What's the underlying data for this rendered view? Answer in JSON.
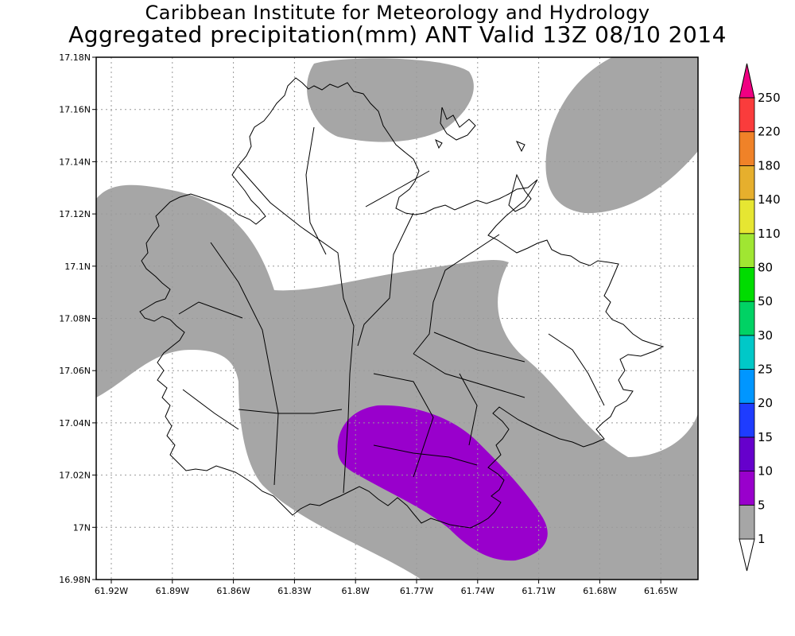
{
  "header": {
    "title_line1": "Caribbean Institute for Meteorology and Hydrology",
    "title_line2": "Aggregated precipitation(mm) ANT Valid 13Z 08/10 2014"
  },
  "map": {
    "lat_labels": [
      "17.18N",
      "17.16N",
      "17.14N",
      "17.12N",
      "17.1N",
      "17.08N",
      "17.06N",
      "17.04N",
      "17.02N",
      "17N",
      "16.98N"
    ],
    "lon_labels": [
      "61.92W",
      "61.89W",
      "61.86W",
      "61.83W",
      "61.8W",
      "61.77W",
      "61.74W",
      "61.71W",
      "61.68W",
      "61.65W"
    ],
    "field_colors": {
      "light_rain": "#a6a6a6",
      "moderate_rain": "#9900cc"
    }
  },
  "colorbar": {
    "levels": [
      {
        "label": "1",
        "color": "#ffffff"
      },
      {
        "label": "5",
        "color": "#a6a6a6"
      },
      {
        "label": "10",
        "color": "#9900cc"
      },
      {
        "label": "15",
        "color": "#6600cc"
      },
      {
        "label": "20",
        "color": "#1e3cff"
      },
      {
        "label": "25",
        "color": "#0096ff"
      },
      {
        "label": "30",
        "color": "#00c8c8"
      },
      {
        "label": "50",
        "color": "#00d264"
      },
      {
        "label": "80",
        "color": "#00dc00"
      },
      {
        "label": "110",
        "color": "#a0e632"
      },
      {
        "label": "140",
        "color": "#e6e632"
      },
      {
        "label": "180",
        "color": "#e6af2d"
      },
      {
        "label": "220",
        "color": "#f08228"
      },
      {
        "label": "250",
        "color": "#fa3c3c"
      }
    ],
    "top_color": "#f00082"
  }
}
